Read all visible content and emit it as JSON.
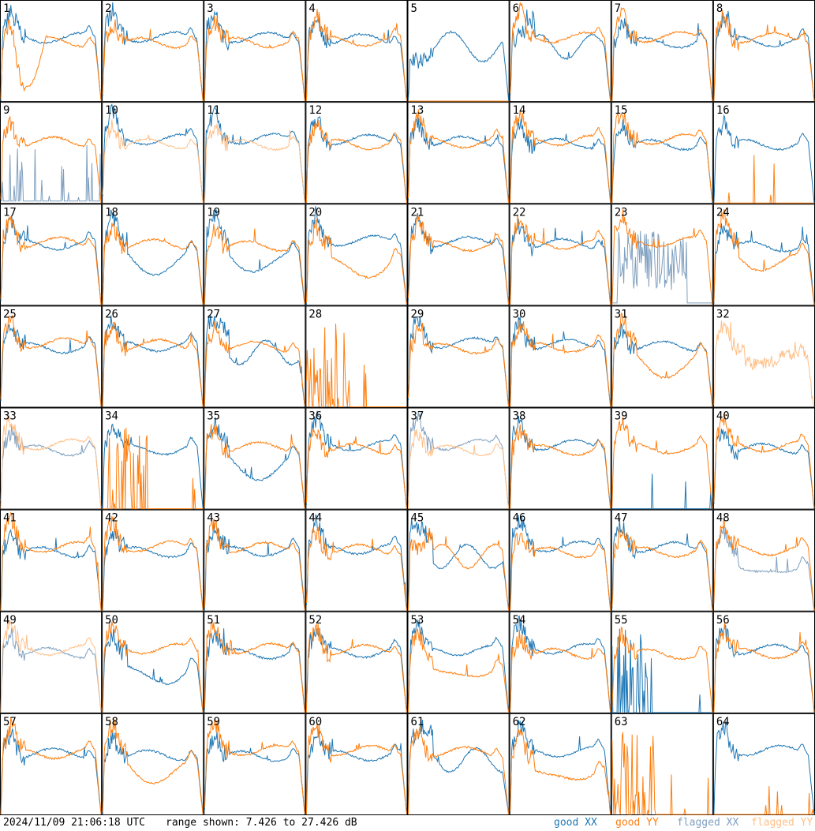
{
  "timestamp": "2024/11/09 21:06:18 UTC",
  "range_text": "range shown: 7.426 to 27.426 dB",
  "legend": {
    "good": "good",
    "flagged": "flagged",
    "xx": "XX",
    "yy": "YY"
  },
  "colors": {
    "good_xx": "#1f77b4",
    "good_yy": "#ff7f0e",
    "flagged_xx": "#7f9fbf",
    "flagged_yy": "#ffbf87",
    "grid": "#000000",
    "background": "#ffffff"
  },
  "chart_data": {
    "type": "line",
    "layout": "8x8 small multiples",
    "y_range_db": [
      7.426,
      27.426
    ],
    "y_unit": "dB",
    "panels": [
      {
        "id": 1,
        "xx": "flat",
        "yy": "dip"
      },
      {
        "id": 2,
        "xx": "flat",
        "yy": "flat"
      },
      {
        "id": 3,
        "xx": "flat",
        "yy": "flat"
      },
      {
        "id": 4,
        "xx": "flat",
        "yy": "flat"
      },
      {
        "id": 5,
        "xx": "bumpy",
        "yy": "dead"
      },
      {
        "id": 6,
        "xx": "wavy",
        "yy": "flat"
      },
      {
        "id": 7,
        "xx": "flat",
        "yy": "flat"
      },
      {
        "id": 8,
        "xx": "flat",
        "yy": "flat"
      },
      {
        "id": 9,
        "xx": "flagged_spiky",
        "yy": "flat"
      },
      {
        "id": 10,
        "xx": "flat",
        "yy": "flagged"
      },
      {
        "id": 11,
        "xx": "flat",
        "yy": "flagged"
      },
      {
        "id": 12,
        "xx": "flat",
        "yy": "flat"
      },
      {
        "id": 13,
        "xx": "flat",
        "yy": "flat"
      },
      {
        "id": 14,
        "xx": "flat",
        "yy": "flat"
      },
      {
        "id": 15,
        "xx": "flat",
        "yy": "flat"
      },
      {
        "id": 16,
        "xx": "flat",
        "yy": "dead"
      },
      {
        "id": 17,
        "xx": "flat",
        "yy": "flat"
      },
      {
        "id": 18,
        "xx": "low",
        "yy": "flat"
      },
      {
        "id": 19,
        "xx": "low",
        "yy": "flat"
      },
      {
        "id": 20,
        "xx": "flat",
        "yy": "low"
      },
      {
        "id": 21,
        "xx": "flat",
        "yy": "flat"
      },
      {
        "id": 22,
        "xx": "flat",
        "yy": "flat"
      },
      {
        "id": 23,
        "xx": "flagged_noise",
        "yy": "flat"
      },
      {
        "id": 24,
        "xx": "flat",
        "yy": "low"
      },
      {
        "id": 25,
        "xx": "flat",
        "yy": "flat"
      },
      {
        "id": 26,
        "xx": "flat",
        "yy": "flat"
      },
      {
        "id": 27,
        "xx": "wavy",
        "yy": "flat"
      },
      {
        "id": 28,
        "xx": "none",
        "yy": "dead_spiky"
      },
      {
        "id": 29,
        "xx": "flat",
        "yy": "flat"
      },
      {
        "id": 30,
        "xx": "flat",
        "yy": "flat"
      },
      {
        "id": 31,
        "xx": "flat",
        "yy": "low"
      },
      {
        "id": 32,
        "xx": "none",
        "yy": "flagged_noisy"
      },
      {
        "id": 33,
        "xx": "flagged",
        "yy": "flagged"
      },
      {
        "id": 34,
        "xx": "flat",
        "yy": "dead_spiky"
      },
      {
        "id": 35,
        "xx": "low",
        "yy": "flat"
      },
      {
        "id": 36,
        "xx": "flat",
        "yy": "flat"
      },
      {
        "id": 37,
        "xx": "flagged",
        "yy": "flagged"
      },
      {
        "id": 38,
        "xx": "flat",
        "yy": "flat"
      },
      {
        "id": 39,
        "xx": "dead",
        "yy": "flat"
      },
      {
        "id": 40,
        "xx": "flat",
        "yy": "flat"
      },
      {
        "id": 41,
        "xx": "flat",
        "yy": "flat"
      },
      {
        "id": 42,
        "xx": "flat",
        "yy": "flat"
      },
      {
        "id": 43,
        "xx": "flat",
        "yy": "flat"
      },
      {
        "id": 44,
        "xx": "flat",
        "yy": "flat"
      },
      {
        "id": 45,
        "xx": "wavy",
        "yy": "wavy"
      },
      {
        "id": 46,
        "xx": "flat",
        "yy": "flat"
      },
      {
        "id": 47,
        "xx": "flat",
        "yy": "flat"
      },
      {
        "id": 48,
        "xx": "flagged_low",
        "yy": "flat"
      },
      {
        "id": 49,
        "xx": "flagged",
        "yy": "flagged"
      },
      {
        "id": 50,
        "xx": "low",
        "yy": "flat"
      },
      {
        "id": 51,
        "xx": "flat",
        "yy": "flat"
      },
      {
        "id": 52,
        "xx": "flat",
        "yy": "flat"
      },
      {
        "id": 53,
        "xx": "flat",
        "yy": "low"
      },
      {
        "id": 54,
        "xx": "flat",
        "yy": "flat"
      },
      {
        "id": 55,
        "xx": "dead_spiky",
        "yy": "flat"
      },
      {
        "id": 56,
        "xx": "flat",
        "yy": "flat"
      },
      {
        "id": 57,
        "xx": "flat",
        "yy": "flat"
      },
      {
        "id": 58,
        "xx": "flat",
        "yy": "low"
      },
      {
        "id": 59,
        "xx": "flat",
        "yy": "flat"
      },
      {
        "id": 60,
        "xx": "flat",
        "yy": "flat"
      },
      {
        "id": 61,
        "xx": "wavy",
        "yy": "flat"
      },
      {
        "id": 62,
        "xx": "flat",
        "yy": "low"
      },
      {
        "id": 63,
        "xx": "none",
        "yy": "dead_spiky"
      },
      {
        "id": 64,
        "xx": "flat",
        "yy": "dead"
      }
    ]
  }
}
